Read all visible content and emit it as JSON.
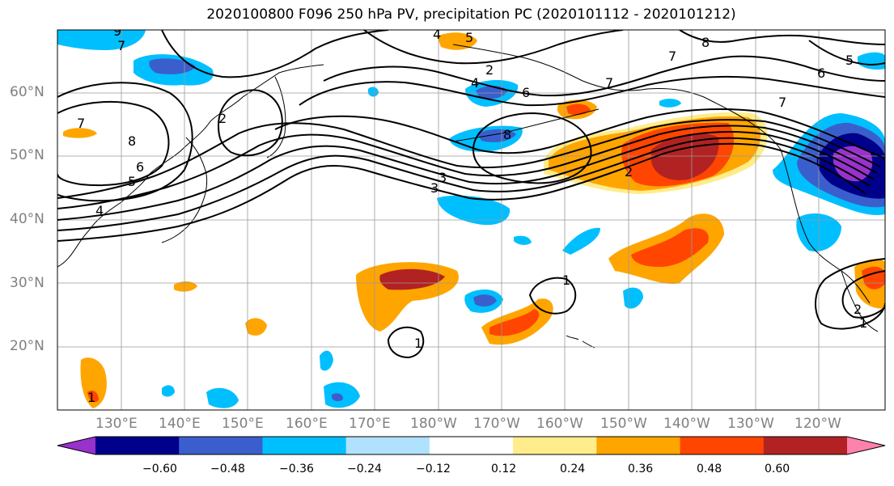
{
  "title": "2020100800 F096 250 hPa PV, precipitation PC (2020101112 - 2020101212)",
  "map": {
    "lat_labels": [
      "60°N",
      "50°N",
      "40°N",
      "30°N",
      "20°N"
    ],
    "lon_labels": [
      "130°E",
      "140°E",
      "150°E",
      "160°E",
      "170°E",
      "180°W",
      "170°W",
      "160°W",
      "150°W",
      "140°W",
      "130°W",
      "120°W"
    ],
    "contour_labels": [
      "9",
      "7",
      "7",
      "8",
      "6",
      "5",
      "4",
      "2",
      "4",
      "2",
      "4",
      "6",
      "5",
      "3",
      "3",
      "8",
      "7",
      "7",
      "8",
      "7",
      "6",
      "5",
      "2",
      "1",
      "1",
      "1",
      "2",
      "1"
    ],
    "colors": {
      "neg_strongest": "#9932cc",
      "neg_very_strong": "#00008b",
      "neg_strong": "#3a5fcd",
      "neg_moderate": "#00bfff",
      "neg_weak": "#b0e2ff",
      "neutral": "#ffffff",
      "pos_weak": "#ffec8b",
      "pos_moderate": "#ffa500",
      "pos_strong": "#ff4500",
      "pos_very_strong": "#b22222",
      "pos_strongest": "#ff82ab"
    }
  },
  "colorbar": {
    "ticks": [
      "−0.60",
      "−0.48",
      "−0.36",
      "−0.24",
      "−0.12",
      "0.12",
      "0.24",
      "0.36",
      "0.48",
      "0.60"
    ],
    "segment_colors": [
      "#9932cc",
      "#00008b",
      "#3a5fcd",
      "#00bfff",
      "#b0e2ff",
      "#ffffff",
      "#ffec8b",
      "#ffa500",
      "#ff4500",
      "#b22222",
      "#ff82ab"
    ]
  }
}
